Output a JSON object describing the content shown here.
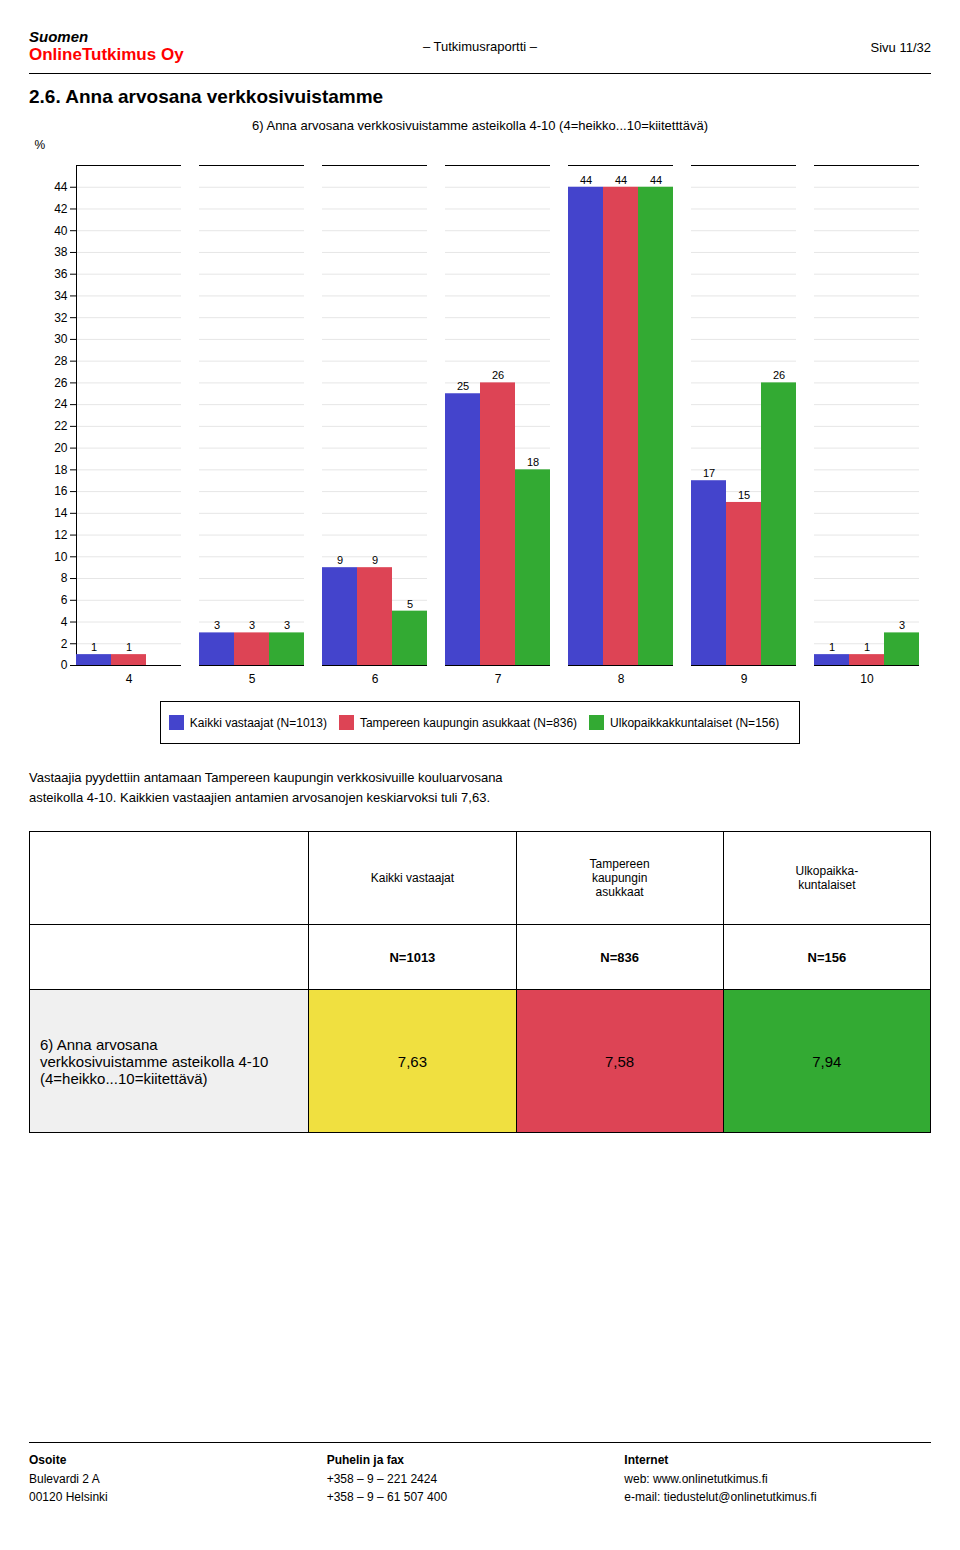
{
  "chart_data": {
    "type": "bar",
    "title": "6) Anna arvosana verkkosivuistamme asteikolla 4-10 (4=heikko...10=kiitetttävä)",
    "categories": [
      4,
      5,
      6,
      7,
      8,
      9,
      10
    ],
    "series": [
      {
        "name": "Kaikki vastaajat (N=1013)",
        "color": "#4444cc",
        "values": [
          1,
          3,
          9,
          25,
          44,
          17,
          1
        ]
      },
      {
        "name": "Tampereen kaupungin asukkaat (N=836)",
        "color": "#dd4455",
        "values": [
          1,
          3,
          9,
          26,
          44,
          15,
          1
        ]
      },
      {
        "name": "Ulkopaikkakkuntalaiset (N=156)",
        "color": "#33aa33",
        "values": [
          0,
          3,
          5,
          18,
          44,
          26,
          3
        ]
      }
    ],
    "ylabel": "%",
    "ylim": [
      0,
      46
    ],
    "yticks": [
      0,
      2,
      4,
      6,
      8,
      10,
      12,
      14,
      16,
      18,
      20,
      22,
      24,
      26,
      28,
      30,
      32,
      34,
      36,
      38,
      40,
      42,
      44
    ],
    "grid": true,
    "data_labels": true,
    "legend": "bottom"
  },
  "page": {
    "header_line1": "Suomen",
    "header_line2": "OnlineTutkimus Oy",
    "center": "– Tutkimusraportti –",
    "right": "Sivu 11/32",
    "section_title": "2.6. Anna arvosana verkkosivuistamme",
    "body_text": [
      "Vastaajia pyydettiin antamaan Tampereen kaupungin verkkosivuille kouluarvosana",
      "asteikolla 4-10. Kaikkien vastaajien antamien arvosanojen keskiarvoksi tuli 7,63."
    ]
  },
  "table": {
    "col_headers": [
      "Kaikki vastaajat",
      "Tampereen\nkaupungin\nasukkaat",
      "Ulkopaikka-\nkuntalaiset"
    ],
    "row2": [
      "N=1013",
      "N=836",
      "N=156"
    ],
    "row_label": "6) Anna arvosana\nverkkosivuistamme asteikolla 4-10\n(4=heikko...10=kiitettävä)",
    "values": [
      "7,63",
      "7,58",
      "7,94"
    ],
    "cell_colors": [
      "#f0e040",
      "#dd4455",
      "#33aa33"
    ]
  },
  "footer": [
    {
      "title": "Osoite",
      "lines": [
        "Bulevardi 2 A",
        "00120 Helsinki"
      ]
    },
    {
      "title": "Puhelin ja fax",
      "lines": [
        "+358 – 9 – 221 2424",
        "+358 – 9 – 61 507 400"
      ]
    },
    {
      "title": "Internet",
      "lines": [
        "web: www.onlinetutkimus.fi",
        "e-mail: tiedustelut@onlinetutkimus.fi"
      ]
    }
  ]
}
